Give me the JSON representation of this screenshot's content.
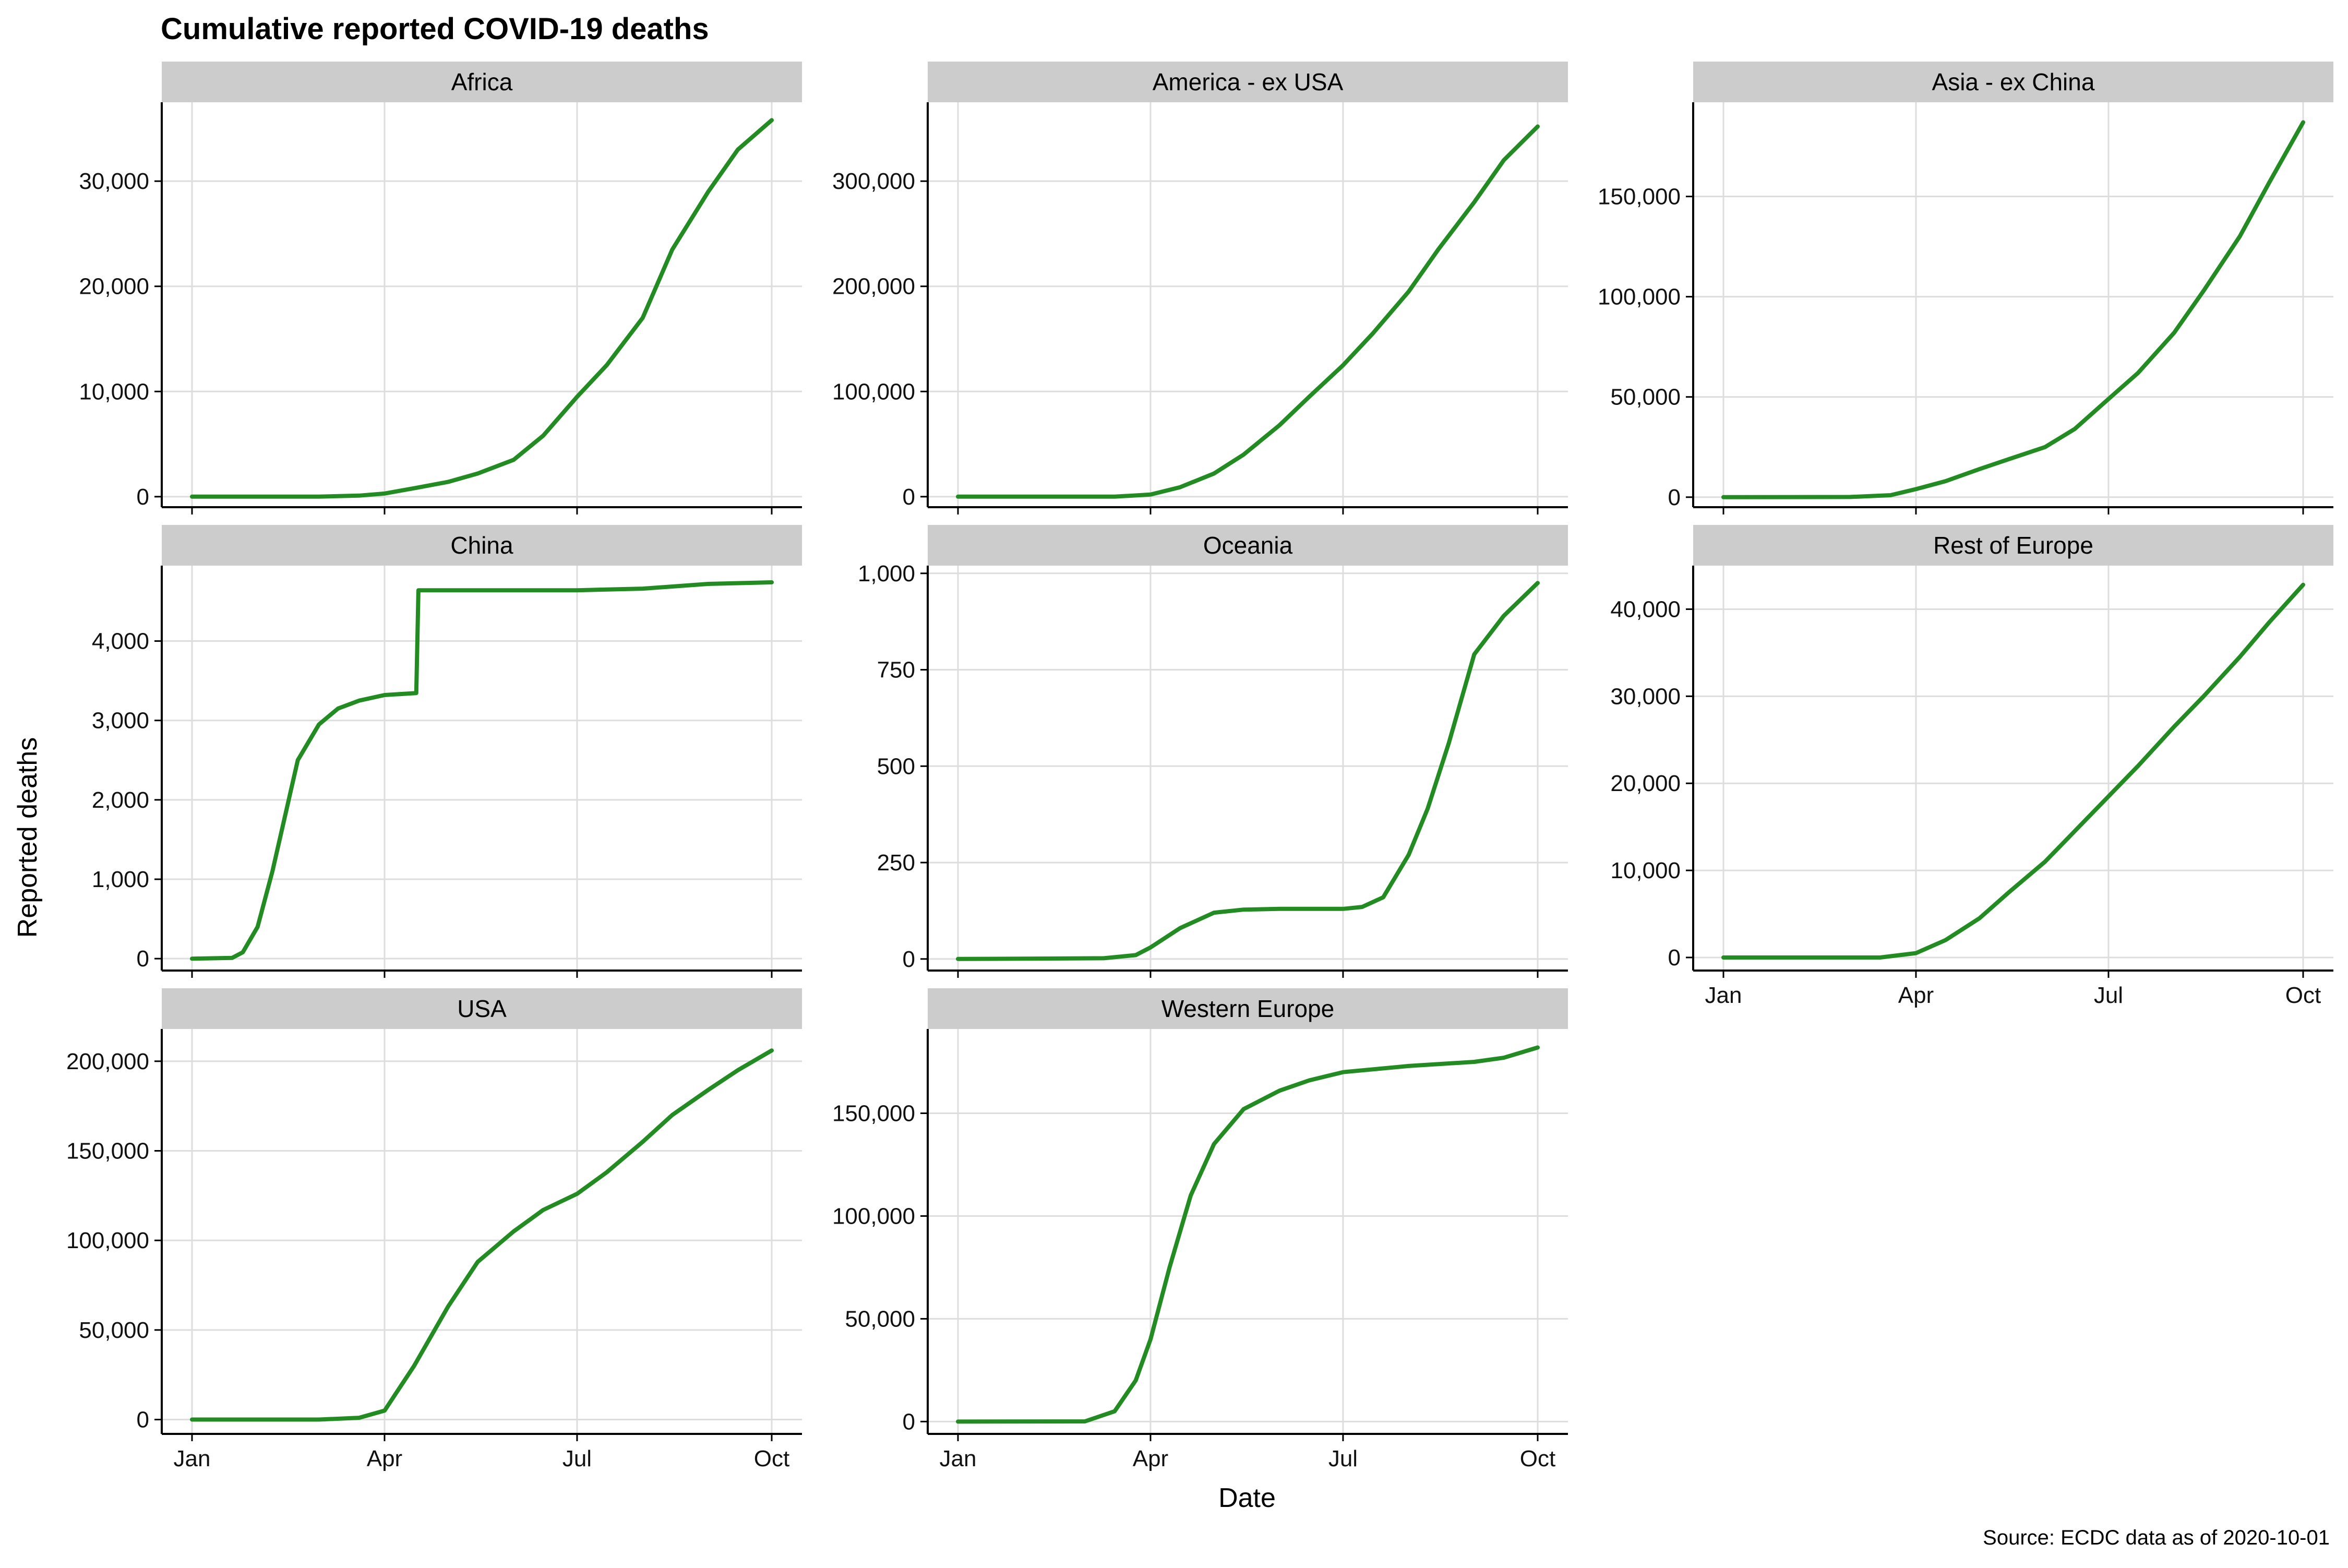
{
  "chart_data": {
    "type": "line",
    "title": "Cumulative reported COVID-19 deaths",
    "xlabel": "Date",
    "ylabel": "Reported deaths",
    "caption": "Source: ECDC data as of 2020-10-01",
    "x_ticks": [
      "Jan",
      "Apr",
      "Jul",
      "Oct"
    ],
    "x_tick_dates": [
      "2020-01-01",
      "2020-04-01",
      "2020-07-01",
      "2020-10-01"
    ],
    "grid": true,
    "colors": {
      "line": "#228B22",
      "strip": "#CCCCCC",
      "grid": "#DDDDDD",
      "axis": "#000000"
    },
    "panels": [
      {
        "name": "Africa",
        "ylim": [
          -1000,
          37500
        ],
        "y_ticks": [
          0,
          10000,
          20000,
          30000
        ],
        "y_tick_labels": [
          "0",
          "10,000",
          "20,000",
          "30,000"
        ],
        "x": [
          "2020-01-01",
          "2020-03-01",
          "2020-03-20",
          "2020-04-01",
          "2020-04-15",
          "2020-05-01",
          "2020-05-15",
          "2020-06-01",
          "2020-06-15",
          "2020-07-01",
          "2020-07-15",
          "2020-08-01",
          "2020-08-15",
          "2020-09-01",
          "2020-09-15",
          "2020-10-01"
        ],
        "y": [
          0,
          0,
          100,
          300,
          800,
          1400,
          2200,
          3500,
          5800,
          9500,
          12500,
          17000,
          23500,
          29000,
          33000,
          35800
        ]
      },
      {
        "name": "America - ex USA",
        "ylim": [
          -10000,
          375000
        ],
        "y_ticks": [
          0,
          100000,
          200000,
          300000
        ],
        "y_tick_labels": [
          "0",
          "100,000",
          "200,000",
          "300,000"
        ],
        "x": [
          "2020-01-01",
          "2020-03-15",
          "2020-04-01",
          "2020-04-15",
          "2020-05-01",
          "2020-05-15",
          "2020-06-01",
          "2020-06-15",
          "2020-07-01",
          "2020-07-15",
          "2020-08-01",
          "2020-08-15",
          "2020-09-01",
          "2020-09-15",
          "2020-10-01"
        ],
        "y": [
          0,
          0,
          2000,
          9000,
          22000,
          40000,
          68000,
          95000,
          125000,
          155000,
          195000,
          235000,
          280000,
          320000,
          352000
        ]
      },
      {
        "name": "Asia - ex China",
        "ylim": [
          -5000,
          197000
        ],
        "y_ticks": [
          0,
          50000,
          100000,
          150000
        ],
        "y_tick_labels": [
          "0",
          "50,000",
          "100,000",
          "150,000"
        ],
        "x": [
          "2020-01-01",
          "2020-03-01",
          "2020-03-20",
          "2020-04-01",
          "2020-04-15",
          "2020-05-01",
          "2020-05-15",
          "2020-06-01",
          "2020-06-15",
          "2020-07-01",
          "2020-07-15",
          "2020-08-01",
          "2020-08-15",
          "2020-09-01",
          "2020-09-15",
          "2020-10-01"
        ],
        "y": [
          0,
          100,
          1000,
          4000,
          8000,
          14000,
          19000,
          25000,
          34000,
          49000,
          62000,
          82000,
          103000,
          130000,
          157000,
          187000
        ]
      },
      {
        "name": "China",
        "ylim": [
          -150,
          4950
        ],
        "y_ticks": [
          0,
          1000,
          2000,
          3000,
          4000
        ],
        "y_tick_labels": [
          "0",
          "1,000",
          "2,000",
          "3,000",
          "4,000"
        ],
        "x": [
          "2020-01-01",
          "2020-01-20",
          "2020-01-25",
          "2020-02-01",
          "2020-02-08",
          "2020-02-14",
          "2020-02-20",
          "2020-03-01",
          "2020-03-10",
          "2020-03-20",
          "2020-04-01",
          "2020-04-16",
          "2020-04-17",
          "2020-05-01",
          "2020-07-01",
          "2020-08-01",
          "2020-09-01",
          "2020-10-01"
        ],
        "y": [
          0,
          10,
          80,
          400,
          1100,
          1800,
          2500,
          2950,
          3150,
          3250,
          3320,
          3345,
          4640,
          4640,
          4640,
          4660,
          4720,
          4740
        ]
      },
      {
        "name": "Oceania",
        "ylim": [
          -30,
          1020
        ],
        "y_ticks": [
          0,
          250,
          500,
          750,
          1000
        ],
        "y_tick_labels": [
          "0",
          "250",
          "500",
          "750",
          "1,000"
        ],
        "x": [
          "2020-01-01",
          "2020-03-10",
          "2020-03-25",
          "2020-04-01",
          "2020-04-15",
          "2020-05-01",
          "2020-05-15",
          "2020-06-01",
          "2020-07-01",
          "2020-07-10",
          "2020-07-20",
          "2020-08-01",
          "2020-08-10",
          "2020-08-20",
          "2020-09-01",
          "2020-09-15",
          "2020-10-01"
        ],
        "y": [
          0,
          2,
          10,
          30,
          80,
          120,
          128,
          130,
          130,
          135,
          160,
          270,
          390,
          560,
          790,
          890,
          975
        ]
      },
      {
        "name": "Rest of Europe",
        "ylim": [
          -1500,
          45000
        ],
        "y_ticks": [
          0,
          10000,
          20000,
          30000,
          40000
        ],
        "y_tick_labels": [
          "0",
          "10,000",
          "20,000",
          "30,000",
          "40,000"
        ],
        "x": [
          "2020-01-01",
          "2020-03-15",
          "2020-04-01",
          "2020-04-15",
          "2020-05-01",
          "2020-05-15",
          "2020-06-01",
          "2020-06-15",
          "2020-07-01",
          "2020-07-15",
          "2020-08-01",
          "2020-08-15",
          "2020-09-01",
          "2020-09-15",
          "2020-10-01"
        ],
        "y": [
          0,
          0,
          500,
          2000,
          4500,
          7500,
          11000,
          14500,
          18500,
          22000,
          26500,
          30000,
          34500,
          38500,
          42800
        ]
      },
      {
        "name": "USA",
        "ylim": [
          -8000,
          218000
        ],
        "y_ticks": [
          0,
          50000,
          100000,
          150000,
          200000
        ],
        "y_tick_labels": [
          "0",
          "50,000",
          "100,000",
          "150,000",
          "200,000"
        ],
        "x": [
          "2020-01-01",
          "2020-03-01",
          "2020-03-20",
          "2020-04-01",
          "2020-04-15",
          "2020-05-01",
          "2020-05-15",
          "2020-06-01",
          "2020-06-15",
          "2020-07-01",
          "2020-07-15",
          "2020-08-01",
          "2020-08-15",
          "2020-09-01",
          "2020-09-15",
          "2020-10-01"
        ],
        "y": [
          0,
          0,
          1000,
          5000,
          30000,
          63000,
          88000,
          105000,
          117000,
          126000,
          138000,
          155000,
          170000,
          184000,
          195000,
          206000
        ]
      },
      {
        "name": "Western Europe",
        "ylim": [
          -6000,
          191000
        ],
        "y_ticks": [
          0,
          50000,
          100000,
          150000
        ],
        "y_tick_labels": [
          "0",
          "50,000",
          "100,000",
          "150,000"
        ],
        "x": [
          "2020-01-01",
          "2020-03-01",
          "2020-03-15",
          "2020-03-25",
          "2020-04-01",
          "2020-04-10",
          "2020-04-20",
          "2020-05-01",
          "2020-05-15",
          "2020-06-01",
          "2020-06-15",
          "2020-07-01",
          "2020-08-01",
          "2020-09-01",
          "2020-09-15",
          "2020-10-01"
        ],
        "y": [
          0,
          100,
          5000,
          20000,
          40000,
          75000,
          110000,
          135000,
          152000,
          161000,
          166000,
          170000,
          173000,
          175000,
          177000,
          182000
        ]
      }
    ]
  }
}
